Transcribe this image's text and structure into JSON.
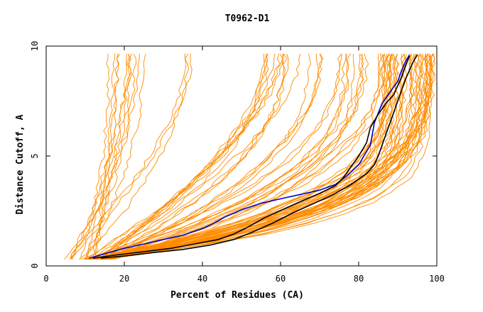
{
  "chart_data": {
    "type": "line",
    "title": "T0962-D1",
    "xlabel": "Percent of Residues (CA)",
    "ylabel": "Distance Cutoff, A",
    "xlim": [
      0,
      100
    ],
    "ylim": [
      0,
      10
    ],
    "x_ticks": [
      "0",
      "20",
      "40",
      "60",
      "80",
      "100"
    ],
    "y_ticks": [
      "0",
      "5",
      "10"
    ],
    "grid": false,
    "colors": {
      "other": "#ff8c00",
      "highlight_blue": "#0000c8",
      "highlight_black": "#000000",
      "axis": "#000000"
    },
    "highlight_series": [
      {
        "color": "blue",
        "x": [
          11,
          15,
          20,
          25,
          30,
          35,
          40,
          43,
          46,
          50,
          55,
          60,
          65,
          70,
          74,
          77,
          80,
          83,
          84,
          86,
          88,
          90,
          91,
          92,
          93
        ],
        "y": [
          0.35,
          0.55,
          0.8,
          1.0,
          1.2,
          1.4,
          1.7,
          1.95,
          2.25,
          2.55,
          2.85,
          3.05,
          3.25,
          3.45,
          3.7,
          4.1,
          4.6,
          5.5,
          6.5,
          7.4,
          7.9,
          8.4,
          8.9,
          9.3,
          9.6
        ]
      },
      {
        "color": "black",
        "x": [
          12,
          18,
          25,
          32,
          38,
          44,
          48,
          52,
          56,
          61,
          66,
          70,
          74,
          76,
          78,
          80,
          82,
          83,
          85,
          87,
          89,
          90,
          91,
          92,
          93
        ],
        "y": [
          0.35,
          0.5,
          0.65,
          0.8,
          1.0,
          1.2,
          1.45,
          1.8,
          2.2,
          2.6,
          3.0,
          3.3,
          3.65,
          4.0,
          4.5,
          5.0,
          5.6,
          6.3,
          6.9,
          7.4,
          7.8,
          8.2,
          8.6,
          9.1,
          9.55
        ]
      },
      {
        "color": "black",
        "x": [
          14,
          20,
          27,
          35,
          42,
          48,
          53,
          58,
          63,
          68,
          73,
          78,
          82,
          84,
          85,
          86,
          87,
          88,
          89,
          90,
          91,
          92,
          93,
          94,
          95
        ],
        "y": [
          0.35,
          0.45,
          0.6,
          0.75,
          0.95,
          1.2,
          1.55,
          1.95,
          2.4,
          2.8,
          3.2,
          3.7,
          4.2,
          4.6,
          5.0,
          5.5,
          6.0,
          6.5,
          7.0,
          7.5,
          8.0,
          8.5,
          8.9,
          9.3,
          9.6
        ]
      }
    ]
  }
}
